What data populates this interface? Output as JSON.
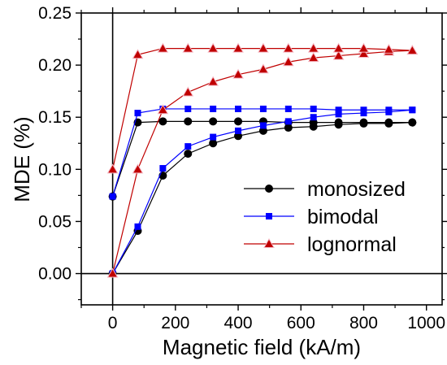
{
  "chart_data": {
    "type": "line",
    "title": "",
    "xlabel": "Magnetic field (kA/m)",
    "ylabel": "MDE (%)",
    "xlim": [
      -100,
      1050
    ],
    "ylim": [
      -0.03,
      0.25
    ],
    "xticks": [
      0,
      200,
      400,
      600,
      800,
      1000
    ],
    "yticks": [
      0.0,
      0.05,
      0.1,
      0.15,
      0.2,
      0.25
    ],
    "xtick_labels": [
      "0",
      "200",
      "400",
      "600",
      "800",
      "1000"
    ],
    "ytick_labels": [
      "0.00",
      "0.05",
      "0.10",
      "0.15",
      "0.20",
      "0.25"
    ],
    "grid": false,
    "legend_position": "bottom-right",
    "series": [
      {
        "name": "monosized",
        "color": "#000000",
        "marker": "circle",
        "branches": [
          {
            "x": [
              0,
              80,
              160,
              240,
              320,
              400,
              480,
              560,
              640,
              720,
              800,
              880,
              955
            ],
            "y": [
              0.0,
              0.041,
              0.094,
              0.115,
              0.125,
              0.132,
              0.137,
              0.14,
              0.141,
              0.143,
              0.144,
              0.144,
              0.145
            ]
          },
          {
            "x": [
              0,
              80,
              160,
              240,
              320,
              400,
              480,
              560,
              640,
              720,
              800,
              880,
              955
            ],
            "y": [
              0.074,
              0.145,
              0.146,
              0.146,
              0.146,
              0.146,
              0.146,
              0.145,
              0.145,
              0.145,
              0.145,
              0.145,
              0.145
            ]
          }
        ]
      },
      {
        "name": "bimodal",
        "color": "#0000ff",
        "marker": "square",
        "branches": [
          {
            "x": [
              0,
              80,
              160,
              240,
              320,
              400,
              480,
              560,
              640,
              720,
              800,
              880,
              955
            ],
            "y": [
              0.0,
              0.045,
              0.101,
              0.122,
              0.131,
              0.137,
              0.142,
              0.146,
              0.15,
              0.153,
              0.154,
              0.155,
              0.157
            ]
          },
          {
            "x": [
              0,
              80,
              160,
              240,
              320,
              400,
              480,
              560,
              640,
              720,
              800,
              880,
              955
            ],
            "y": [
              0.074,
              0.154,
              0.158,
              0.158,
              0.158,
              0.158,
              0.158,
              0.158,
              0.158,
              0.157,
              0.157,
              0.157,
              0.157
            ]
          }
        ]
      },
      {
        "name": "lognormal",
        "color": "#c00000",
        "marker": "triangle",
        "branches": [
          {
            "x": [
              0,
              80,
              160,
              240,
              320,
              400,
              480,
              560,
              640,
              720,
              800,
              880,
              955
            ],
            "y": [
              0.0,
              0.1,
              0.157,
              0.174,
              0.184,
              0.191,
              0.196,
              0.203,
              0.207,
              0.209,
              0.211,
              0.213,
              0.214
            ]
          },
          {
            "x": [
              0,
              80,
              160,
              240,
              320,
              400,
              480,
              560,
              640,
              720,
              800,
              880,
              955
            ],
            "y": [
              0.1,
              0.21,
              0.216,
              0.216,
              0.216,
              0.216,
              0.216,
              0.216,
              0.216,
              0.216,
              0.216,
              0.215,
              0.214
            ]
          }
        ]
      }
    ]
  }
}
